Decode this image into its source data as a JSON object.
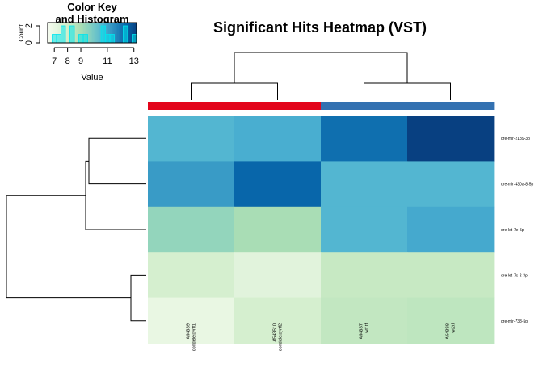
{
  "chart_data": {
    "type": "heatmap",
    "title": "Significant Hits Heatmap (VST)",
    "columns": [
      {
        "sample": "A543S9",
        "condition": "condeletcyrtf1",
        "group": "condelet"
      },
      {
        "sample": "A543S10",
        "condition": "condeletcyrtf2",
        "group": "condelet"
      },
      {
        "sample": "A543S7",
        "condition": "wt1tf",
        "group": "wt"
      },
      {
        "sample": "A543S8",
        "condition": "wt2tf",
        "group": "wt"
      }
    ],
    "rows": [
      "dre-mir-2189-3p",
      "dre-mir-430a-8-5p",
      "dre-let-7e-5p",
      "dre-let-7c-2-3p",
      "dre-mir-738-5p"
    ],
    "values": [
      [
        10.6,
        10.8,
        12.2,
        13.2
      ],
      [
        11.2,
        12.4,
        10.6,
        10.6
      ],
      [
        9.4,
        9.0,
        10.6,
        10.9
      ],
      [
        7.8,
        7.3,
        8.3,
        8.3
      ],
      [
        7.0,
        7.8,
        8.4,
        8.5
      ]
    ],
    "group_colors": {
      "condelet": "#e3051b",
      "wt": "#3371b1"
    },
    "palette": [
      "#f7fcf0",
      "#e0f3db",
      "#ccebc5",
      "#a8ddb5",
      "#7bccc4",
      "#4eb3d3",
      "#2b8cbe",
      "#0868ac",
      "#084081"
    ],
    "color_key": {
      "title_line1": "Color Key",
      "title_line2": "and Histogram",
      "xlabel": "Value",
      "ylabel": "Count",
      "range": [
        6.5,
        13.2
      ],
      "xticks": [
        "7",
        "8",
        "9",
        "11",
        "13"
      ],
      "xtick_values": [
        7,
        8,
        9,
        11,
        13
      ],
      "yticks": [
        "0",
        "2"
      ],
      "ylim": [
        0,
        2
      ]
    },
    "dendrogram_cols": "hierarchical",
    "dendrogram_rows": "hierarchical"
  }
}
